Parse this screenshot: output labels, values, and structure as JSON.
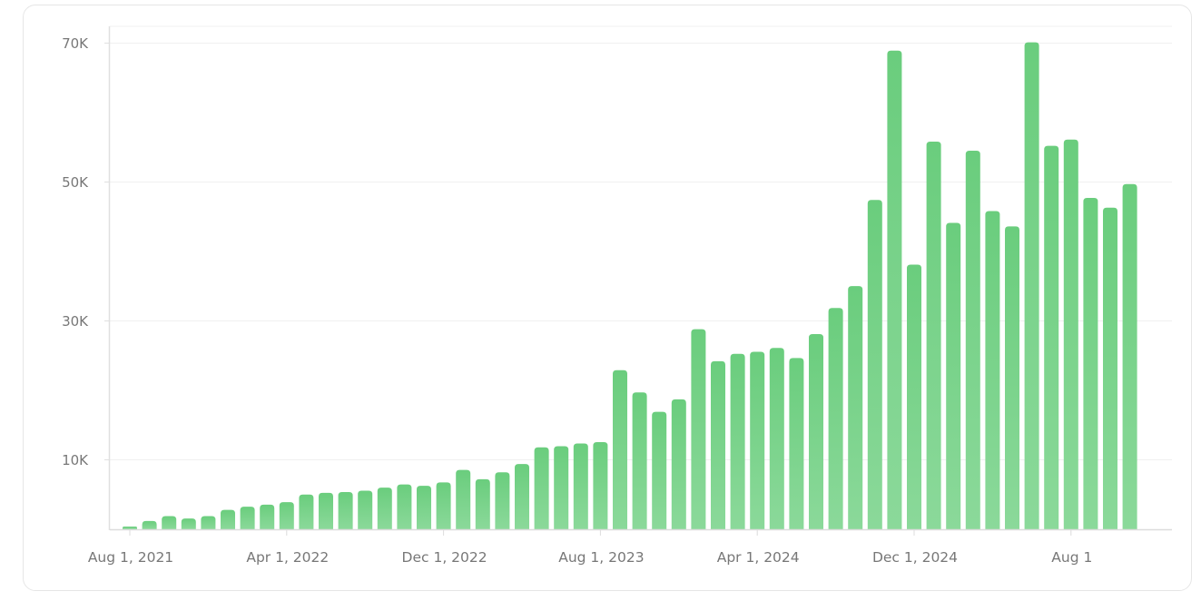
{
  "chart_data": {
    "type": "bar",
    "title": "",
    "xlabel": "",
    "ylabel": "",
    "ylim": [
      0,
      72400
    ],
    "grid": true,
    "legend": null,
    "bar_color_top": "#6acd7d",
    "bar_color_bottom": "#8bd99a",
    "yticks": [
      {
        "value": 10000,
        "label": "10K"
      },
      {
        "value": 30000,
        "label": "30K"
      },
      {
        "value": 50000,
        "label": "50K"
      },
      {
        "value": 70000,
        "label": "70K"
      }
    ],
    "xticks": [
      {
        "index": 0,
        "label": "Aug 1, 2021"
      },
      {
        "index": 8,
        "label": "Apr 1, 2022"
      },
      {
        "index": 16,
        "label": "Dec 1, 2022"
      },
      {
        "index": 24,
        "label": "Aug 1, 2023"
      },
      {
        "index": 32,
        "label": "Apr 1, 2024"
      },
      {
        "index": 40,
        "label": "Dec 1, 2024"
      },
      {
        "index": 48,
        "label": "Aug 1"
      }
    ],
    "categories": [
      "2021-08",
      "2021-09",
      "2021-10",
      "2021-11",
      "2021-12",
      "2022-01",
      "2022-02",
      "2022-03",
      "2022-04",
      "2022-05",
      "2022-06",
      "2022-07",
      "2022-08",
      "2022-09",
      "2022-10",
      "2022-11",
      "2022-12",
      "2023-01",
      "2023-02",
      "2023-03",
      "2023-04",
      "2023-05",
      "2023-06",
      "2023-07",
      "2023-08",
      "2023-09",
      "2023-10",
      "2023-11",
      "2023-12",
      "2024-01",
      "2024-02",
      "2024-03",
      "2024-04",
      "2024-05",
      "2024-06",
      "2024-07",
      "2024-08",
      "2024-09",
      "2024-10",
      "2024-11",
      "2024-12",
      "2025-01",
      "2025-02",
      "2025-03",
      "2025-04",
      "2025-05",
      "2025-06",
      "2025-07",
      "2025-08",
      "2025-09",
      "2025-10",
      "2025-11"
    ],
    "values": [
      400,
      1200,
      1900,
      1550,
      1900,
      2800,
      3250,
      3550,
      3900,
      5000,
      5250,
      5350,
      5550,
      6000,
      6450,
      6250,
      6750,
      8550,
      7200,
      8200,
      9400,
      11800,
      11950,
      12350,
      12550,
      22900,
      19700,
      16900,
      18700,
      28800,
      24200,
      25250,
      25550,
      26100,
      24650,
      28100,
      31850,
      35000,
      47400,
      68900,
      38100,
      55800,
      44100,
      54500,
      45800,
      43600,
      70100,
      55200,
      56100,
      47700,
      46300,
      49700
    ]
  }
}
